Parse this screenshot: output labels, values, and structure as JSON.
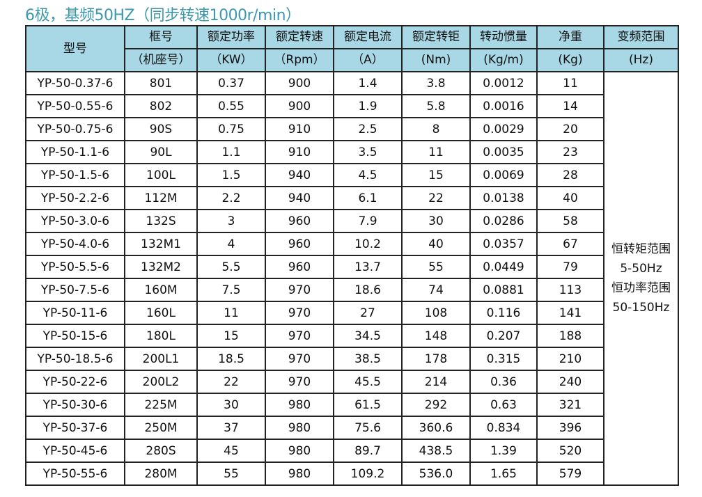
{
  "title": "6极，基频50HZ（同步转速1000r/min）",
  "colors": {
    "title": "#3b98ad",
    "header_bg": "#a8d8e6"
  },
  "headers": [
    {
      "l1": "型号",
      "l2": ""
    },
    {
      "l1": "框号",
      "l2": "（机座号）"
    },
    {
      "l1": "额定功率",
      "l2": "（KW）"
    },
    {
      "l1": "额定转速",
      "l2": "（Rpm）"
    },
    {
      "l1": "额定电流",
      "l2": "（A）"
    },
    {
      "l1": "额定转钜",
      "l2": "(Nm)"
    },
    {
      "l1": "转动惯量",
      "l2": "(Kg/m)"
    },
    {
      "l1": "净重",
      "l2": "(Kg)"
    },
    {
      "l1": "变频范围",
      "l2": "(Hz)"
    }
  ],
  "rows": [
    [
      "YP-50-0.37-6",
      "801",
      "0.37",
      "900",
      "1.4",
      "3.8",
      "0.0012",
      "11"
    ],
    [
      "YP-50-0.55-6",
      "802",
      "0.55",
      "900",
      "1.9",
      "5.8",
      "0.0016",
      "14"
    ],
    [
      "YP-50-0.75-6",
      "90S",
      "0.75",
      "910",
      "2.5",
      "8",
      "0.0029",
      "20"
    ],
    [
      "YP-50-1.1-6",
      "90L",
      "1.1",
      "910",
      "3.5",
      "11",
      "0.0035",
      "23"
    ],
    [
      "YP-50-1.5-6",
      "100L",
      "1.5",
      "940",
      "4.5",
      "15",
      "0.0069",
      "28"
    ],
    [
      "YP-50-2.2-6",
      "112M",
      "2.2",
      "940",
      "6.1",
      "22",
      "0.0138",
      "40"
    ],
    [
      "YP-50-3.0-6",
      "132S",
      "3",
      "960",
      "7.9",
      "30",
      "0.0286",
      "58"
    ],
    [
      "YP-50-4.0-6",
      "132M1",
      "4",
      "960",
      "10.2",
      "40",
      "0.0357",
      "67"
    ],
    [
      "YP-50-5.5-6",
      "132M2",
      "5.5",
      "960",
      "13.7",
      "55",
      "0.0449",
      "79"
    ],
    [
      "YP-50-7.5-6",
      "160M",
      "7.5",
      "970",
      "18.6",
      "74",
      "0.0881",
      "113"
    ],
    [
      "YP-50-11-6",
      "160L",
      "11",
      "970",
      "27",
      "108",
      "0.116",
      "141"
    ],
    [
      "YP-50-15-6",
      "180L",
      "15",
      "970",
      "34.5",
      "148",
      "0.207",
      "188"
    ],
    [
      "YP-50-18.5-6",
      "200L1",
      "18.5",
      "970",
      "38.5",
      "178",
      "0.315",
      "210"
    ],
    [
      "YP-50-22-6",
      "200L2",
      "22",
      "970",
      "45.5",
      "214",
      "0.36",
      "240"
    ],
    [
      "YP-50-30-6",
      "225M",
      "30",
      "980",
      "61.5",
      "292",
      "0.63",
      "321"
    ],
    [
      "YP-50-37-6",
      "250M",
      "37",
      "980",
      "75.6",
      "360.6",
      "0.834",
      "396"
    ],
    [
      "YP-50-45-6",
      "280S",
      "45",
      "980",
      "89.7",
      "438.5",
      "1.39",
      "520"
    ],
    [
      "YP-50-55-6",
      "280M",
      "55",
      "980",
      "109.2",
      "536.0",
      "1.65",
      "579"
    ]
  ],
  "freq_note": [
    "恒转矩范围",
    "5-50Hz",
    "恒功率范围",
    "50-150Hz"
  ]
}
